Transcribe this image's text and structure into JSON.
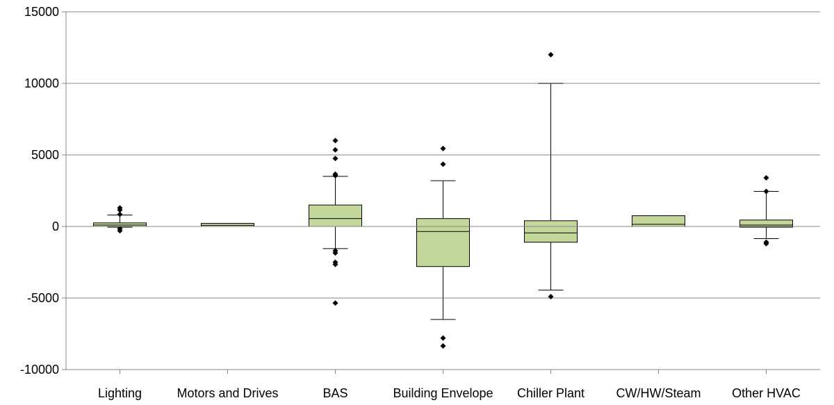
{
  "chart_data": {
    "type": "boxplot",
    "title": "",
    "xlabel": "",
    "ylabel": "",
    "ylim": [
      -10000,
      15000
    ],
    "yticks": [
      -10000,
      -5000,
      0,
      5000,
      10000,
      15000
    ],
    "ytick_labels": [
      "-10000",
      "-5000",
      "0",
      "5000",
      "10000",
      "15000"
    ],
    "grid": true,
    "legend": "none",
    "box_color": "#c4d79b",
    "categories": [
      "Lighting",
      "Motors and Drives",
      "BAS",
      "Building Envelope",
      "Chiller Plant",
      "CW/HW/Steam",
      "Other HVAC"
    ],
    "boxes": [
      {
        "category": "Lighting",
        "whisker_low": -50,
        "q1": 0,
        "median": 100,
        "q3": 250,
        "whisker_high": 800,
        "outliers": [
          1300,
          1150,
          850,
          -150,
          -300
        ]
      },
      {
        "category": "Motors and Drives",
        "whisker_low": 0,
        "q1": 0,
        "median": 80,
        "q3": 220,
        "whisker_high": 220,
        "outliers": []
      },
      {
        "category": "BAS",
        "whisker_low": -1550,
        "q1": 0,
        "median": 550,
        "q3": 1500,
        "whisker_high": 3500,
        "outliers": [
          6000,
          5350,
          4750,
          3650,
          3550,
          -1700,
          -1850,
          -2500,
          -2650,
          -5350
        ]
      },
      {
        "category": "Building Envelope",
        "whisker_low": -6500,
        "q1": -2800,
        "median": -350,
        "q3": 550,
        "whisker_high": 3200,
        "outliers": [
          5450,
          4350,
          -7800,
          -8350
        ]
      },
      {
        "category": "Chiller Plant",
        "whisker_low": -4450,
        "q1": -1100,
        "median": -450,
        "q3": 400,
        "whisker_high": 10000,
        "outliers": [
          12000,
          -4900
        ]
      },
      {
        "category": "CW/HW/Steam",
        "whisker_low": 0,
        "q1": 0,
        "median": 150,
        "q3": 750,
        "whisker_high": 750,
        "outliers": []
      },
      {
        "category": "Other HVAC",
        "whisker_low": -850,
        "q1": -50,
        "median": 100,
        "q3": 450,
        "whisker_high": 2450,
        "outliers": [
          3400,
          2450,
          -1100,
          -1200
        ]
      }
    ]
  }
}
